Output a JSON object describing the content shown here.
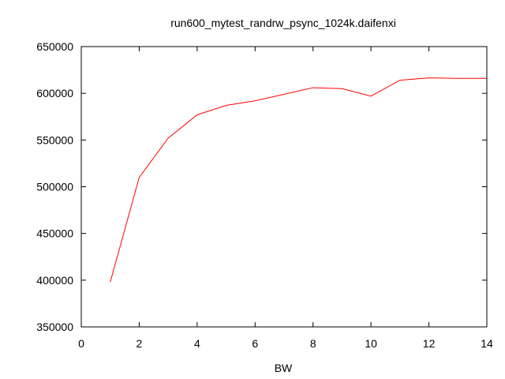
{
  "chart_data": {
    "type": "line",
    "title": "run600_mytest_randrw_psync_1024k.daifenxi",
    "xlabel": "BW",
    "ylabel": "",
    "xlim": [
      0,
      14
    ],
    "ylim": [
      350000,
      650000
    ],
    "x_ticks": [
      0,
      2,
      4,
      6,
      8,
      10,
      12,
      14
    ],
    "y_ticks": [
      350000,
      400000,
      450000,
      500000,
      550000,
      600000,
      650000
    ],
    "x_tick_labels": [
      "0",
      "2",
      "4",
      "6",
      "8",
      "10",
      "12",
      "14"
    ],
    "y_tick_labels": [
      "350000",
      "400000",
      "450000",
      "500000",
      "550000",
      "600000",
      "650000"
    ],
    "grid": false,
    "legend": "none",
    "series": [
      {
        "color": "#ff0000",
        "x": [
          1,
          2,
          3,
          4,
          5,
          6,
          7,
          8,
          9,
          10,
          11,
          12,
          13,
          14
        ],
        "y": [
          398000,
          510000,
          552000,
          577000,
          587000,
          592000,
          599000,
          606000,
          605000,
          597000,
          614000,
          616500,
          616000,
          616000
        ]
      }
    ]
  }
}
